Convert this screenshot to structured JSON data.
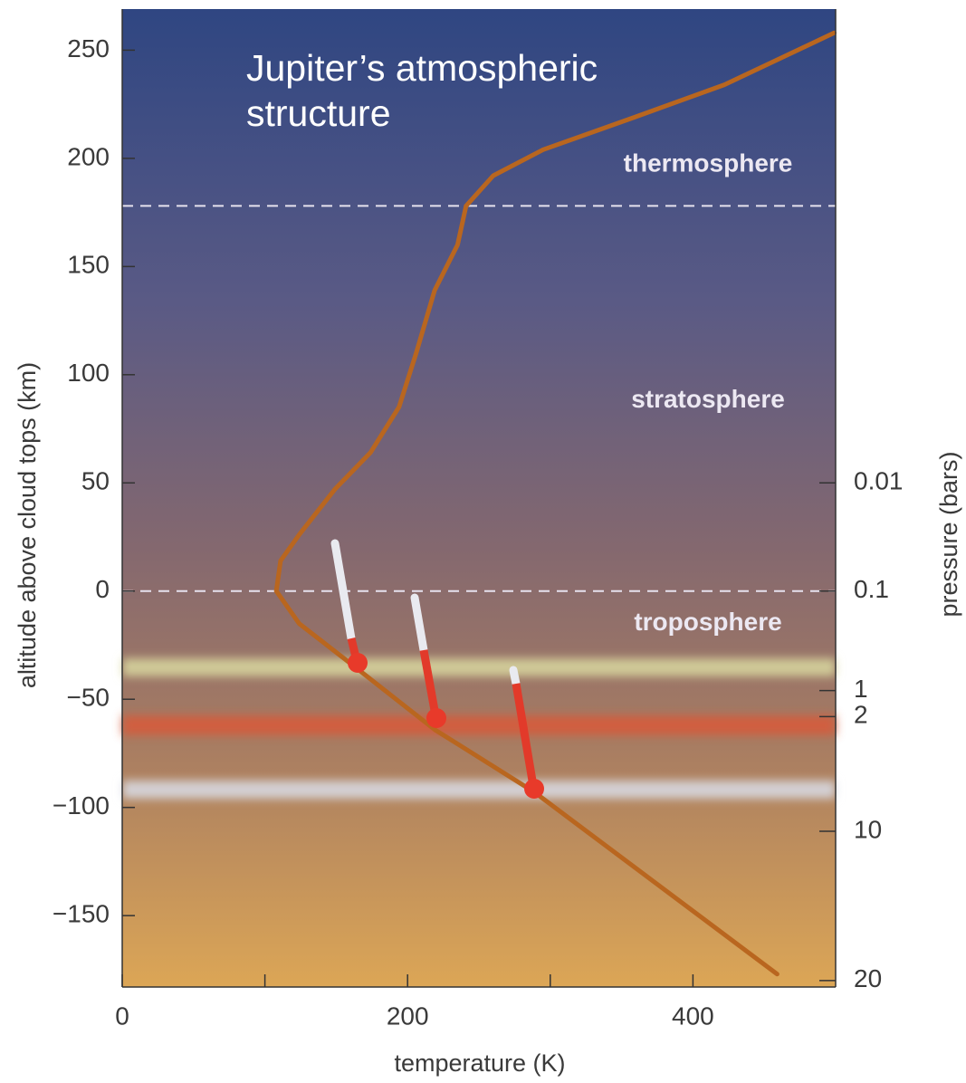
{
  "chart_data": {
    "type": "line",
    "title": "Jupiter’s atmospheric structure",
    "xlabel": "temperature (K)",
    "ylabel": "altitude above cloud tops (km)",
    "y2label": "pressure (bars)",
    "xlim": [
      0,
      500
    ],
    "xticks": [
      0,
      200,
      400
    ],
    "xminor_ticks": [
      100,
      300
    ],
    "ylim": [
      -183,
      269
    ],
    "yticks": [
      250,
      200,
      150,
      100,
      50,
      0,
      {
        "value": -50,
        "label": "−50"
      },
      {
        "value": -100,
        "label": "−100"
      },
      {
        "value": -150,
        "label": "−150"
      }
    ],
    "pressure_ticks": [
      {
        "value": 0.01,
        "altitude": 50
      },
      {
        "value": 0.1,
        "altitude": 0
      },
      {
        "value": 1,
        "altitude": -46
      },
      {
        "value": 2,
        "altitude": -58
      },
      {
        "value": 10,
        "altitude": -111
      },
      {
        "value": 20,
        "altitude": -180
      }
    ],
    "boundaries": [
      178,
      0
    ],
    "regions": [
      {
        "label": "thermosphere",
        "altitude": 197
      },
      {
        "label": "stratosphere",
        "altitude": 88
      },
      {
        "label": "troposphere",
        "altitude": -15
      }
    ],
    "series": [
      {
        "color": "#b9661f",
        "x": [
          459,
          289,
          219,
          165,
          124,
          108,
          111,
          124,
          149,
          174,
          194,
          206,
          219,
          235,
          241,
          260,
          295,
          359,
          422,
          499
        ],
        "values": [
          -177,
          -93,
          -64,
          -36,
          -15,
          0,
          14,
          26,
          47,
          64,
          85,
          110,
          139,
          160,
          178,
          192,
          204,
          219,
          234,
          258
        ]
      }
    ]
  }
}
